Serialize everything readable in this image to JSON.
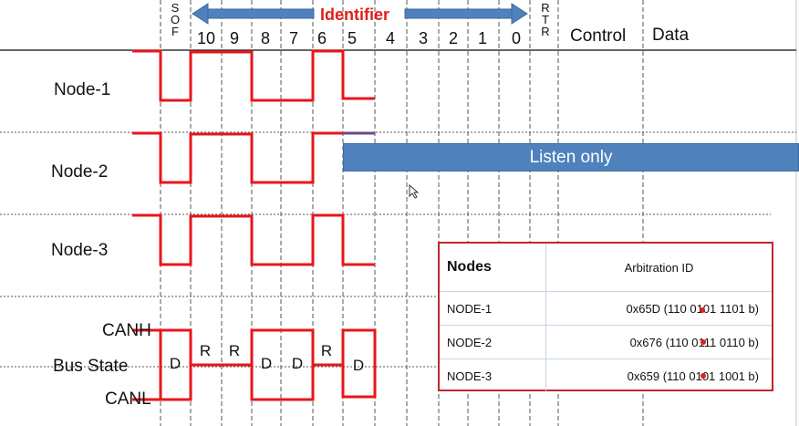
{
  "header": {
    "identifier": "Identifier",
    "sof": [
      "S",
      "O",
      "F"
    ],
    "rtr": [
      "R",
      "T",
      "R"
    ],
    "bits": [
      "10",
      "9",
      "8",
      "7",
      "6",
      "5",
      "4",
      "3",
      "2",
      "1",
      "0"
    ],
    "control": "Control",
    "data": "Data"
  },
  "rows": [
    "Node-1",
    "Node-2",
    "Node-3"
  ],
  "bus": {
    "canh": "CANH",
    "state": "Bus State",
    "canl": "CANL",
    "bits": [
      "D",
      "R",
      "R",
      "D",
      "D",
      "R",
      "D"
    ]
  },
  "listen_only": "Listen only",
  "table": {
    "headers": [
      "Nodes",
      "Arbitration ID"
    ],
    "rows": [
      {
        "node": "NODE-1",
        "id": "0x65D (110 0101 1101 b)"
      },
      {
        "node": "NODE-2",
        "id": "0x676 (110 0111 0110 b)"
      },
      {
        "node": "NODE-3",
        "id": "0x659 (110 0101 1001 b)"
      }
    ]
  },
  "colors": {
    "waveform": "#e8161b",
    "accent_blue": "#4f81bd",
    "identifier_text": "#e0201b",
    "table_border": "#c0272d"
  }
}
